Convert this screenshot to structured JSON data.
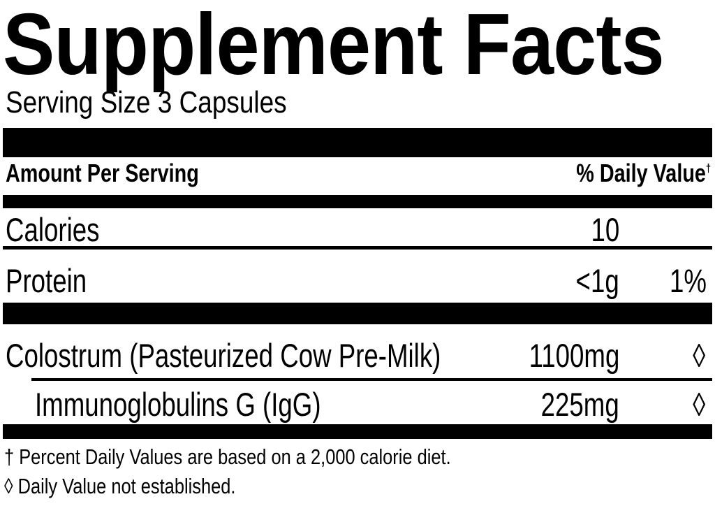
{
  "title": "Supplement Facts",
  "serving_size": "Serving Size 3 Capsules",
  "header": {
    "amount_per_serving": "Amount Per Serving",
    "daily_value": "% Daily Value",
    "daily_value_mark": "†"
  },
  "rows": [
    {
      "name": "Calories",
      "amount": "10",
      "dv": ""
    },
    {
      "name": "Protein",
      "amount": "<1g",
      "dv": "1%"
    },
    {
      "name": "Colostrum (Pasteurized Cow Pre-Milk)",
      "amount": "1100mg",
      "dv": "◊"
    },
    {
      "name": "Immunoglobulins G (IgG)",
      "amount": "225mg",
      "dv": "◊"
    }
  ],
  "footnotes": [
    "† Percent Daily Values are based on a 2,000 calorie diet.",
    "◊ Daily Value not established."
  ]
}
